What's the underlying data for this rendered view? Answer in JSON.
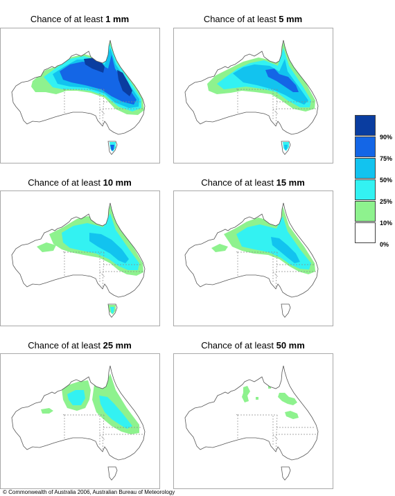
{
  "panels": [
    {
      "title_prefix": "Chance of at least ",
      "amount": "1 mm"
    },
    {
      "title_prefix": "Chance of at least ",
      "amount": "5 mm"
    },
    {
      "title_prefix": "Chance of at least ",
      "amount": "10 mm"
    },
    {
      "title_prefix": "Chance of at least ",
      "amount": "15 mm"
    },
    {
      "title_prefix": "Chance of at least ",
      "amount": "25 mm"
    },
    {
      "title_prefix": "Chance of at least ",
      "amount": "50 mm"
    }
  ],
  "legend": {
    "labels": [
      "90%",
      "75%",
      "50%",
      "25%",
      "10%",
      "0%"
    ],
    "classes": [
      {
        "range": ">90%",
        "color": "#0a3da0"
      },
      {
        "range": "75-90%",
        "color": "#1466e6"
      },
      {
        "range": "50-75%",
        "color": "#12c3ef"
      },
      {
        "range": "25-50%",
        "color": "#33f2f2"
      },
      {
        "range": "10-25%",
        "color": "#8ef28e"
      },
      {
        "range": "0-10%",
        "color": "#ffffff"
      }
    ]
  },
  "copyright": "© Commonwealth of Australia 2006, Australian Bureau of Meteorology"
}
